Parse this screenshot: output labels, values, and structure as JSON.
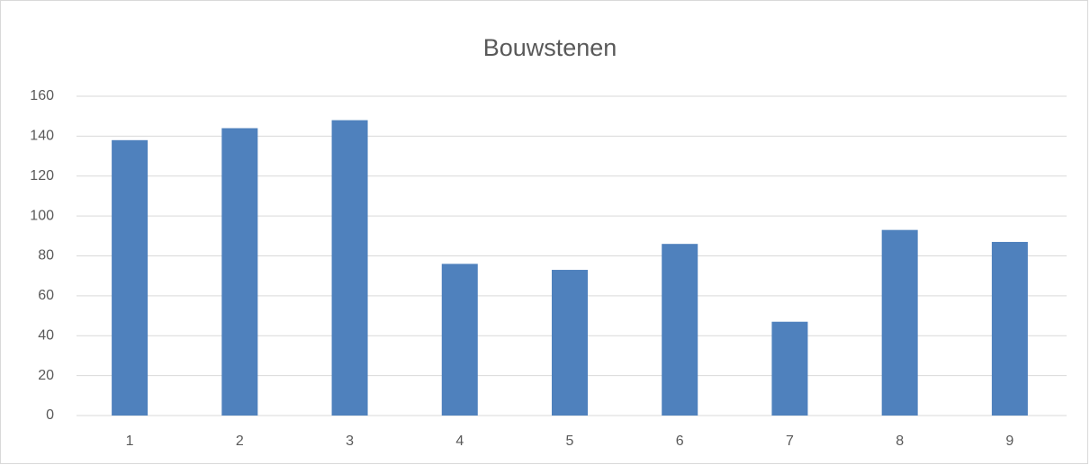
{
  "chart_data": {
    "type": "bar",
    "title": "Bouwstenen",
    "categories": [
      "1",
      "2",
      "3",
      "4",
      "5",
      "6",
      "7",
      "8",
      "9"
    ],
    "values": [
      138,
      144,
      148,
      76,
      73,
      86,
      47,
      93,
      87
    ],
    "color": "#4f81bd",
    "ylim": [
      0,
      160
    ],
    "yticks": [
      0,
      20,
      40,
      60,
      80,
      100,
      120,
      140,
      160
    ],
    "grid": true
  }
}
